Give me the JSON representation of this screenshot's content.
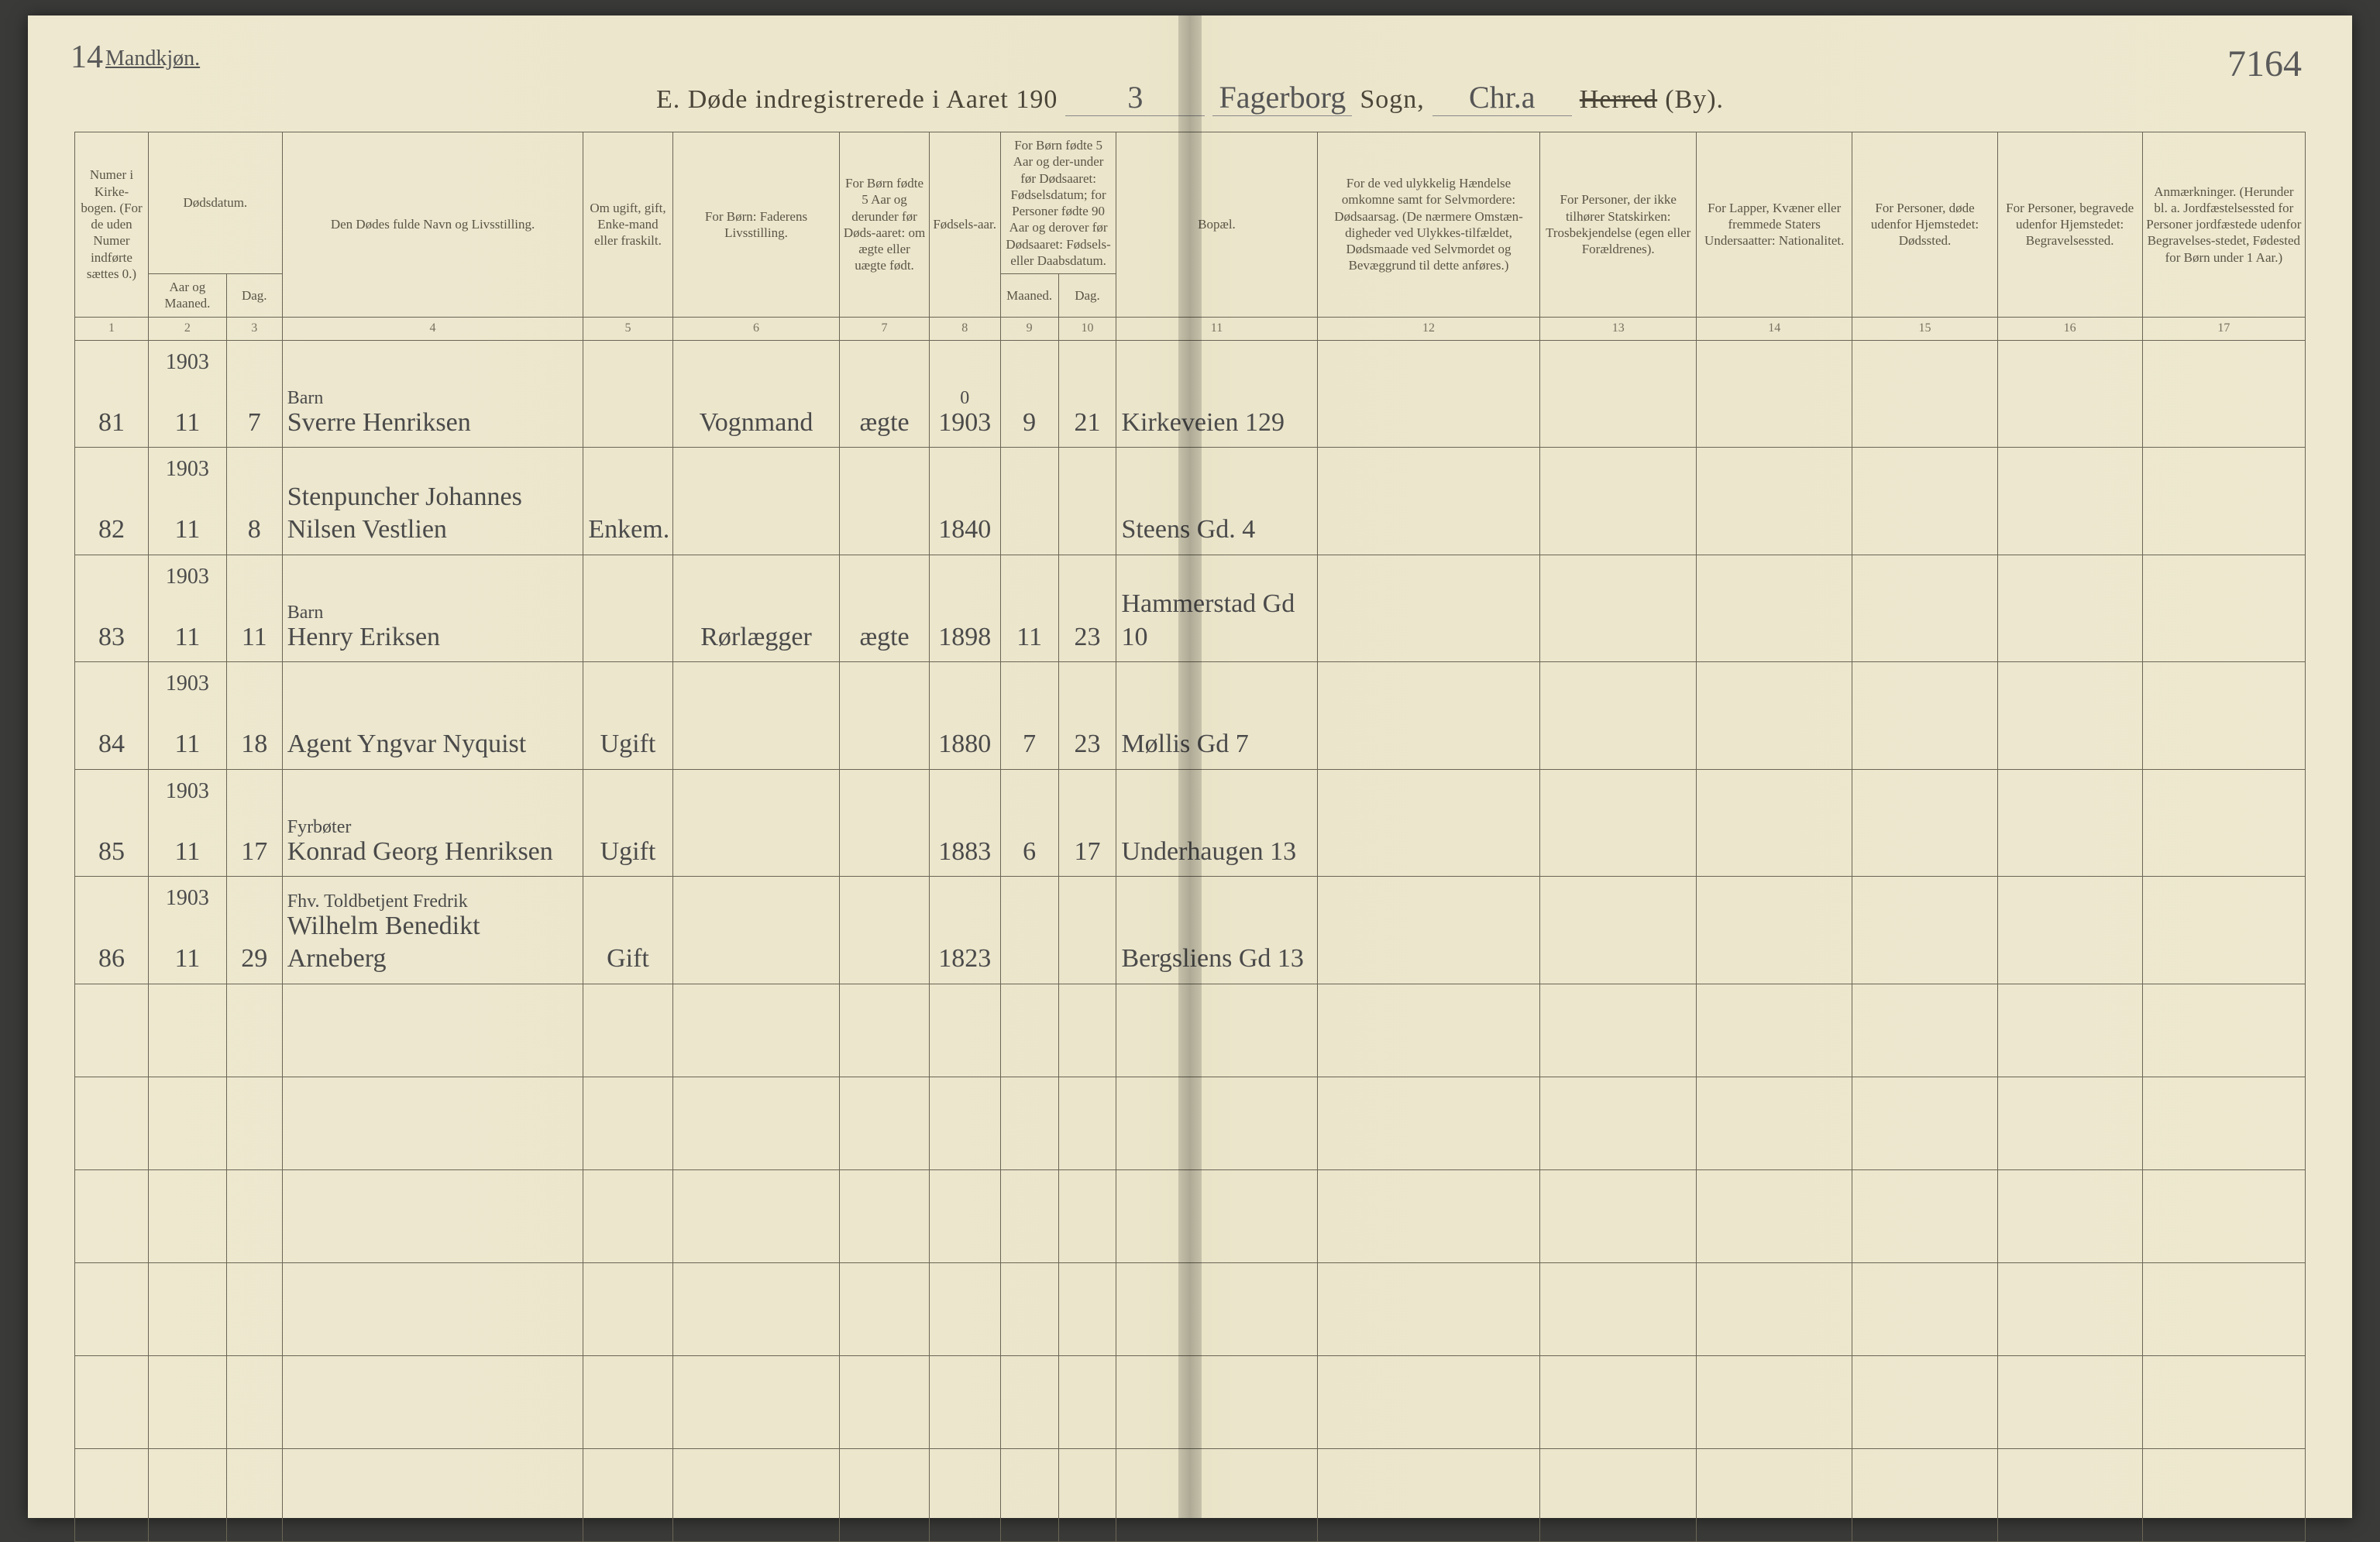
{
  "page_left_num": "14",
  "page_right_num": "7164",
  "gender_label": "Mandkjøn.",
  "title": {
    "prefix": "E.  Døde indregistrerede i Aaret 190",
    "year_suffix": "3",
    "parish_written": "Fagerborg",
    "sogn_label": "Sogn,",
    "sogn_written": "Chr.a",
    "herred_label": "Herred",
    "by_label": "(By)."
  },
  "headers": {
    "c1": "Numer i Kirke-bogen. (For de uden Numer indførte sættes 0.)",
    "c23_top": "Dødsdatum.",
    "c2": "Aar og Maaned.",
    "c3": "Dag.",
    "c4": "Den Dødes fulde Navn og Livsstilling.",
    "c5": "Om ugift, gift, Enke-mand eller fraskilt.",
    "c6": "For Børn: Faderens Livsstilling.",
    "c7": "For Børn fødte 5 Aar og derunder før Døds-aaret: om ægte eller uægte født.",
    "c8": "Fødsels-aar.",
    "c910_top": "For Børn fødte 5 Aar og der-under før Dødsaaret: Fødselsdatum; for Personer fødte 90 Aar og derover før Dødsaaret: Fødsels- eller Daabsdatum.",
    "c9": "Maaned.",
    "c10": "Dag.",
    "c11": "Bopæl.",
    "c12": "For de ved ulykkelig Hændelse omkomne samt for Selvmordere: Dødsaarsag. (De nærmere Omstæn-digheder ved Ulykkes-tilfældet, Dødsmaade ved Selvmordet og Bevæggrund til dette anføres.)",
    "c13": "For Personer, der ikke tilhører Statskirken: Trosbekjendelse (egen eller Forældrenes).",
    "c14": "For Lapper, Kvæner eller fremmede Staters Undersaatter: Nationalitet.",
    "c15": "For Personer, døde udenfor Hjemstedet: Dødssted.",
    "c16": "For Personer, begravede udenfor Hjemstedet: Begravelsessted.",
    "c17": "Anmærkninger. (Herunder bl. a. Jordfæstelsessted for Personer jordfæstede udenfor Begravelses-stedet, Fødested for Børn under 1 Aar.)"
  },
  "colnums": [
    "1",
    "2",
    "3",
    "4",
    "5",
    "6",
    "7",
    "8",
    "9",
    "10",
    "11",
    "12",
    "13",
    "14",
    "15",
    "16",
    "17"
  ],
  "rows": [
    {
      "num": "81",
      "year": "1903",
      "month": "11",
      "day": "7",
      "name_top": "Barn",
      "name": "Sverre Henriksen",
      "marital": "",
      "father": "Vognmand",
      "legit": "ægte",
      "birth_year_top": "0",
      "birth_year": "1903",
      "birth_month": "9",
      "birth_day": "21",
      "residence": "Kirkeveien 129"
    },
    {
      "num": "82",
      "year": "1903",
      "month": "11",
      "day": "8",
      "name_top": "",
      "name": "Stenpuncher Johannes Nilsen Vestlien",
      "marital": "Enkem.",
      "father": "",
      "legit": "",
      "birth_year_top": "",
      "birth_year": "1840",
      "birth_month": "",
      "birth_day": "",
      "residence": "Steens Gd. 4"
    },
    {
      "num": "83",
      "year": "1903",
      "month": "11",
      "day": "11",
      "name_top": "Barn",
      "name": "Henry Eriksen",
      "marital": "",
      "father": "Rørlægger",
      "legit": "ægte",
      "birth_year_top": "",
      "birth_year": "1898",
      "birth_month": "11",
      "birth_day": "23",
      "residence": "Hammerstad Gd 10"
    },
    {
      "num": "84",
      "year": "1903",
      "month": "11",
      "day": "18",
      "name_top": "",
      "name": "Agent Yngvar Nyquist",
      "marital": "Ugift",
      "father": "",
      "legit": "",
      "birth_year_top": "",
      "birth_year": "1880",
      "birth_month": "7",
      "birth_day": "23",
      "residence": "Møllis Gd 7"
    },
    {
      "num": "85",
      "year": "1903",
      "month": "11",
      "day": "17",
      "name_top": "Fyrbøter",
      "name": "Konrad Georg Henriksen",
      "marital": "Ugift",
      "father": "",
      "legit": "",
      "birth_year_top": "",
      "birth_year": "1883",
      "birth_month": "6",
      "birth_day": "17",
      "residence": "Underhaugen 13"
    },
    {
      "num": "86",
      "year": "1903",
      "month": "11",
      "day": "29",
      "name_top": "Fhv. Toldbetjent Fredrik",
      "name": "Wilhelm Benedikt Arneberg",
      "marital": "Gift",
      "father": "",
      "legit": "",
      "birth_year_top": "",
      "birth_year": "1823",
      "birth_month": "",
      "birth_day": "",
      "residence": "Bergsliens Gd 13"
    }
  ],
  "empty_rows": 6,
  "colors": {
    "paper": "#ede8cf",
    "rule": "#6a6555",
    "print_text": "#5a5546",
    "handwriting": "#4a4a4a"
  }
}
